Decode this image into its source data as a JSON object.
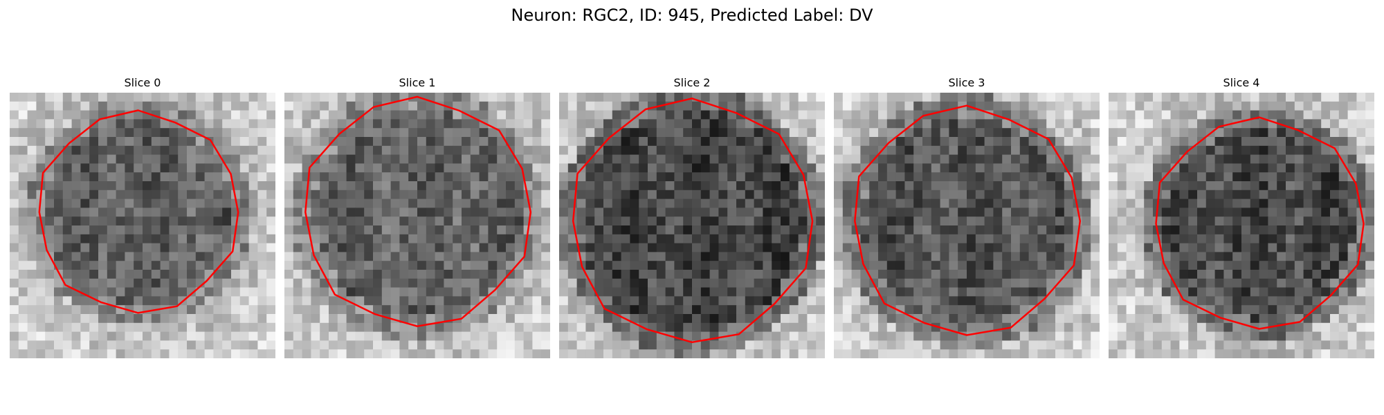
{
  "figure": {
    "title": "Neuron: RGC2, ID: 945, Predicted Label: DV",
    "contour_color": "#ff0000"
  },
  "panels": [
    {
      "title": "Slice 0"
    },
    {
      "title": "Slice 1"
    },
    {
      "title": "Slice 2"
    },
    {
      "title": "Slice 3"
    },
    {
      "title": "Slice 4"
    }
  ]
}
